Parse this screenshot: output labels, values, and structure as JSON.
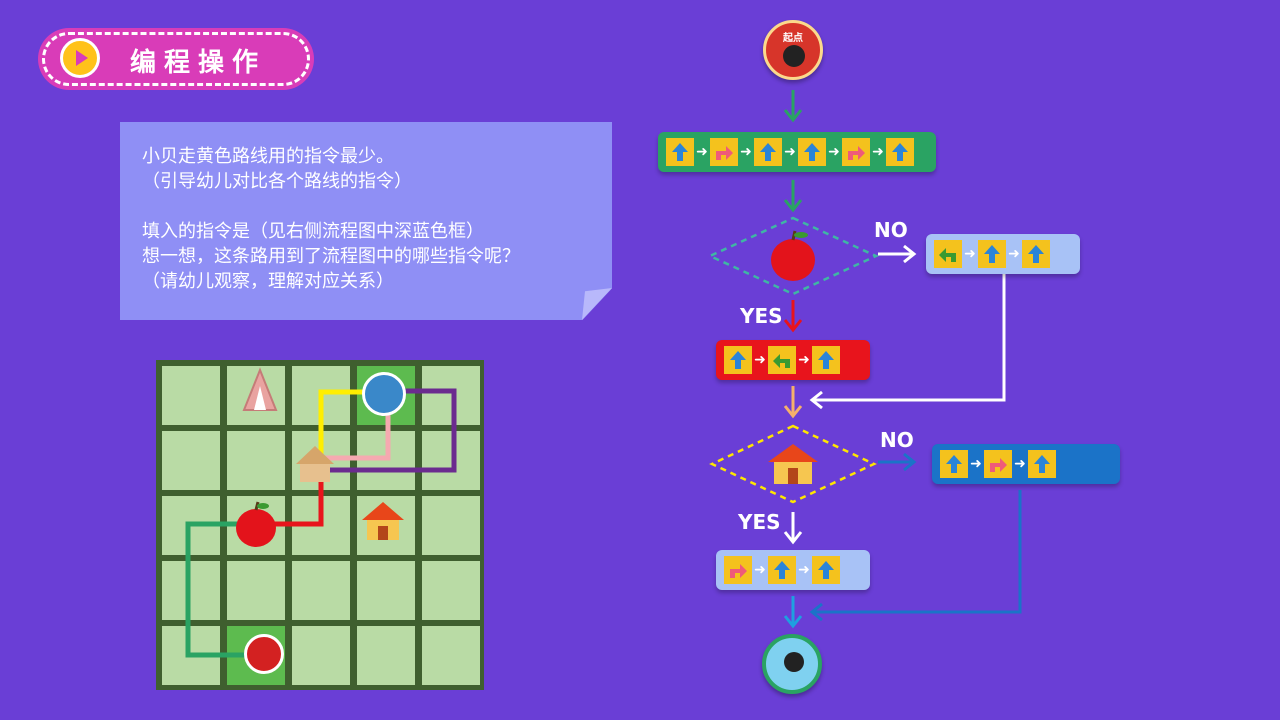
{
  "title": {
    "text": "编程操作"
  },
  "note": {
    "lines": [
      "小贝走黄色路线用的指令最少。",
      "（引导幼儿对比各个路线的指令）",
      "",
      "填入的指令是（见右侧流程图中深蓝色框）",
      "想一想，这条路用到了流程图中的哪些指令呢？",
      "（请幼儿观察，理解对应关系）"
    ]
  },
  "flowchart": {
    "start_label": "起点",
    "no_label_1": "NO",
    "yes_label_1": "YES",
    "no_label_2": "NO",
    "yes_label_2": "YES",
    "box_main": [
      "up",
      "right-turn",
      "up",
      "up",
      "right-turn",
      "up"
    ],
    "box_no1": [
      "left-turn",
      "up",
      "up"
    ],
    "box_yes1": [
      "up",
      "left-turn",
      "up"
    ],
    "box_no2": [
      "up",
      "right-turn",
      "up"
    ],
    "box_yes2": [
      "right-turn",
      "up",
      "up"
    ],
    "colors": {
      "green": "#2aa363",
      "lightblue": "#a8c2f6",
      "red": "#e8141c",
      "blue": "#1b73c8",
      "yellow_cmd": "#f4c21d"
    }
  }
}
